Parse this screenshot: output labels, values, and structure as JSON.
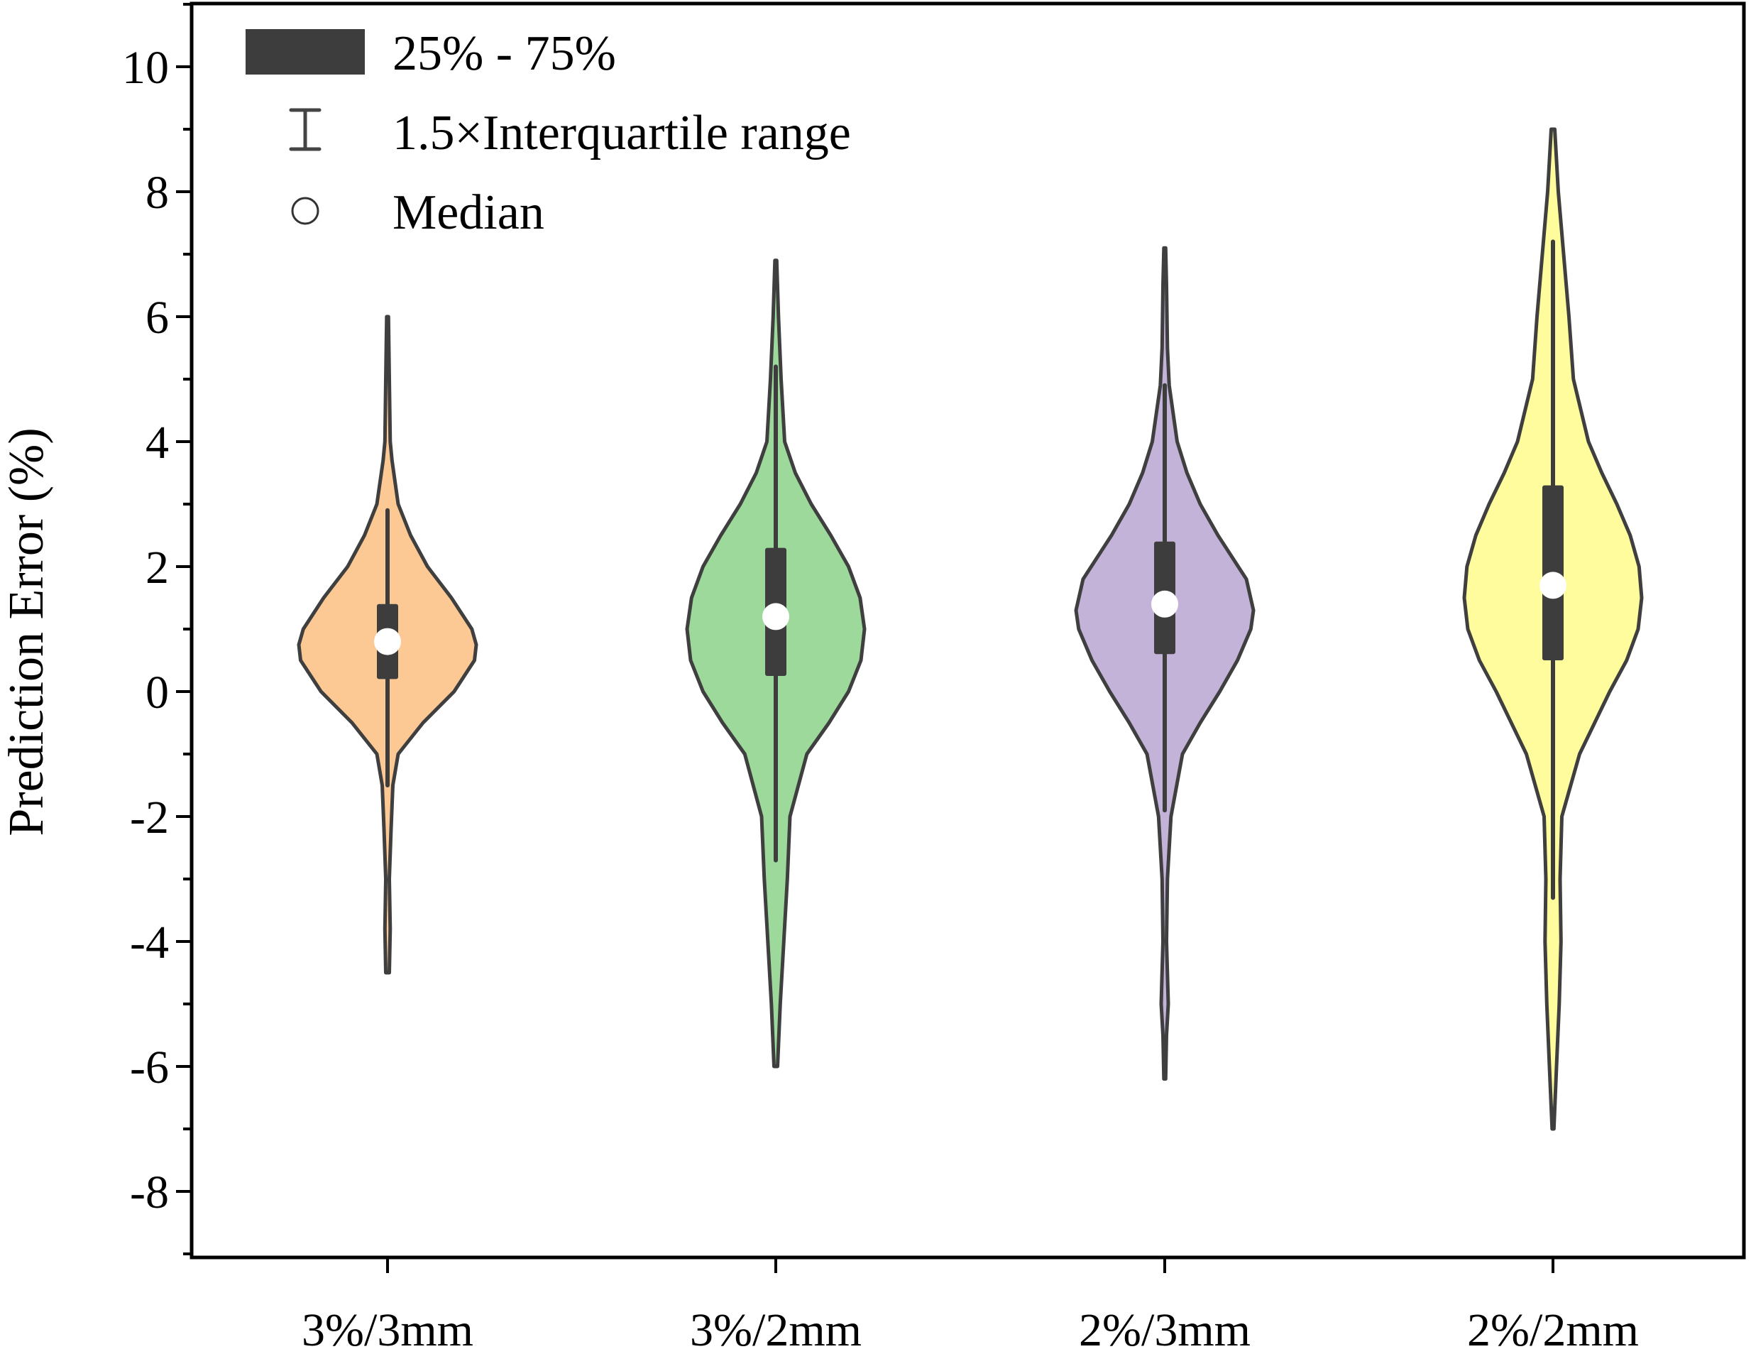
{
  "chart_data": {
    "type": "violin",
    "title": "",
    "xlabel": "",
    "ylabel": "Prediction Error (%)",
    "ylim": [
      -9,
      11
    ],
    "yticks": [
      10,
      8,
      6,
      4,
      2,
      0,
      -2,
      -4,
      -6,
      -8
    ],
    "grid": false,
    "categories": [
      "3%/3mm",
      "3%/2mm",
      "2%/3mm",
      "2%/2mm"
    ],
    "legend": {
      "placement": "top-left",
      "entries": [
        {
          "icon": "box-icon",
          "label": "25% - 75%"
        },
        {
          "icon": "whisker-icon",
          "label": "1.5×Interquartile range"
        },
        {
          "icon": "median-circle-icon",
          "label": "Median"
        }
      ]
    },
    "series": [
      {
        "category": "3%/3mm",
        "color": "#fcc994",
        "median": 0.8,
        "q1": 0.2,
        "q3": 1.4,
        "whisker_low": -1.5,
        "whisker_high": 2.9,
        "min": -4.5,
        "max": 6.0,
        "density": [
          [
            -4.5,
            0.02
          ],
          [
            -3.8,
            0.03
          ],
          [
            -3.0,
            0.02
          ],
          [
            -2.2,
            0.04
          ],
          [
            -1.5,
            0.06
          ],
          [
            -1.0,
            0.12
          ],
          [
            -0.5,
            0.4
          ],
          [
            0.0,
            0.75
          ],
          [
            0.5,
            0.98
          ],
          [
            0.75,
            1.0
          ],
          [
            1.0,
            0.95
          ],
          [
            1.5,
            0.72
          ],
          [
            2.0,
            0.45
          ],
          [
            2.5,
            0.26
          ],
          [
            3.0,
            0.12
          ],
          [
            3.7,
            0.05
          ],
          [
            4.0,
            0.03
          ],
          [
            5.0,
            0.02
          ],
          [
            6.0,
            0.01
          ]
        ]
      },
      {
        "category": "3%/2mm",
        "color": "#9ed99c",
        "median": 1.2,
        "q1": 0.25,
        "q3": 2.3,
        "whisker_low": -2.7,
        "whisker_high": 5.2,
        "min": -6.0,
        "max": 6.9,
        "density": [
          [
            -6.0,
            0.02
          ],
          [
            -5.0,
            0.05
          ],
          [
            -4.0,
            0.09
          ],
          [
            -3.0,
            0.13
          ],
          [
            -2.0,
            0.16
          ],
          [
            -1.0,
            0.35
          ],
          [
            -0.5,
            0.6
          ],
          [
            0.0,
            0.82
          ],
          [
            0.5,
            0.96
          ],
          [
            1.0,
            1.0
          ],
          [
            1.5,
            0.95
          ],
          [
            2.0,
            0.82
          ],
          [
            2.5,
            0.62
          ],
          [
            3.0,
            0.4
          ],
          [
            3.5,
            0.22
          ],
          [
            4.0,
            0.1
          ],
          [
            5.0,
            0.06
          ],
          [
            6.0,
            0.03
          ],
          [
            6.9,
            0.01
          ]
        ]
      },
      {
        "category": "2%/3mm",
        "color": "#c3b3d9",
        "median": 1.4,
        "q1": 0.6,
        "q3": 2.4,
        "whisker_low": -1.9,
        "whisker_high": 4.9,
        "min": -6.2,
        "max": 7.1,
        "density": [
          [
            -6.2,
            0.01
          ],
          [
            -5.5,
            0.02
          ],
          [
            -5.0,
            0.04
          ],
          [
            -4.0,
            0.02
          ],
          [
            -3.0,
            0.03
          ],
          [
            -2.0,
            0.07
          ],
          [
            -1.0,
            0.2
          ],
          [
            -0.5,
            0.4
          ],
          [
            0.0,
            0.62
          ],
          [
            0.5,
            0.82
          ],
          [
            1.0,
            0.97
          ],
          [
            1.3,
            1.0
          ],
          [
            1.8,
            0.92
          ],
          [
            2.5,
            0.6
          ],
          [
            3.0,
            0.4
          ],
          [
            3.5,
            0.25
          ],
          [
            4.0,
            0.14
          ],
          [
            4.9,
            0.05
          ],
          [
            5.5,
            0.03
          ],
          [
            6.5,
            0.02
          ],
          [
            7.1,
            0.01
          ]
        ]
      },
      {
        "category": "2%/2mm",
        "color": "#fefc9c",
        "median": 1.7,
        "q1": 0.5,
        "q3": 3.3,
        "whisker_low": -3.3,
        "whisker_high": 7.2,
        "min": -7.0,
        "max": 9.0,
        "density": [
          [
            -7.0,
            0.01
          ],
          [
            -6.0,
            0.04
          ],
          [
            -5.0,
            0.07
          ],
          [
            -4.0,
            0.09
          ],
          [
            -3.0,
            0.08
          ],
          [
            -2.0,
            0.1
          ],
          [
            -1.0,
            0.3
          ],
          [
            0.0,
            0.64
          ],
          [
            0.5,
            0.83
          ],
          [
            1.0,
            0.96
          ],
          [
            1.5,
            1.0
          ],
          [
            2.0,
            0.97
          ],
          [
            2.5,
            0.87
          ],
          [
            3.0,
            0.72
          ],
          [
            3.5,
            0.55
          ],
          [
            4.0,
            0.4
          ],
          [
            5.0,
            0.23
          ],
          [
            6.0,
            0.18
          ],
          [
            7.0,
            0.12
          ],
          [
            8.0,
            0.06
          ],
          [
            9.0,
            0.02
          ]
        ]
      }
    ]
  }
}
